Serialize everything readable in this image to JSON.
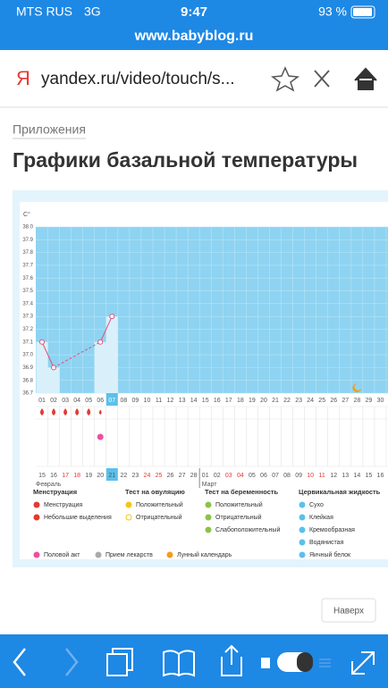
{
  "status": {
    "carrier": "MTS RUS",
    "network": "3G",
    "time": "9:47",
    "battery": "93 %"
  },
  "site": "www.babyblog.ru",
  "browser": {
    "logo": "Я",
    "url": "yandex.ru/video/touch/s..."
  },
  "breadcrumb": "Приложения",
  "title": "Графики базальной температуры",
  "chart": {
    "type": "line",
    "unit": "C°",
    "ylim": [
      36.7,
      38.0
    ],
    "yticks": [
      36.7,
      36.8,
      36.9,
      {
        "value": 37.0,
        "label": "37.0"
      },
      37.1,
      37.2,
      37.3,
      37.4,
      37.5,
      37.6,
      37.7,
      37.8,
      37.9,
      {
        "value": 38.0,
        "label": "38.0"
      }
    ],
    "days": [
      "01",
      "02",
      "03",
      "04",
      "05",
      "06",
      "07",
      "08",
      "09",
      "10",
      "11",
      "12",
      "13",
      "14",
      "15",
      "16",
      "17",
      "18",
      "19",
      "20",
      "21",
      "22",
      "23",
      "24",
      "25",
      "26",
      "27",
      "28",
      "29",
      "30",
      "31"
    ],
    "values": [
      37.1,
      36.9,
      null,
      null,
      null,
      37.1,
      37.3,
      null,
      null,
      null,
      null,
      null,
      null,
      null,
      null,
      null,
      null,
      null,
      null,
      null,
      null,
      null,
      null,
      null,
      null,
      null,
      null,
      null,
      null,
      null,
      null
    ],
    "today": 6,
    "dates": [
      "15",
      "16",
      "17",
      "18",
      "19",
      "20",
      "21",
      "22",
      "23",
      "24",
      "25",
      "26",
      "27",
      "28",
      "01",
      "02",
      "03",
      "04",
      "05",
      "06",
      "07",
      "08",
      "09",
      "10",
      "11",
      "12",
      "13",
      "14",
      "15",
      "16",
      "17"
    ],
    "weekend": [
      2,
      3,
      9,
      10,
      16,
      17,
      23,
      24,
      30
    ],
    "months": [
      "Февраль",
      "Март"
    ],
    "menstruation_days": [
      0,
      1,
      2,
      3,
      4
    ],
    "spotting_days": [
      5
    ],
    "intercourse_days": [
      5
    ],
    "moon_days": [
      27
    ]
  },
  "legend": [
    {
      "title": "Менструация",
      "items": [
        "Менструация",
        "Небольшие выделения"
      ]
    },
    {
      "title": "Тест на овуляцию",
      "items": [
        "Положительный",
        "Отрицательный"
      ]
    },
    {
      "title": "Тест на беременность",
      "items": [
        "Положительный",
        "Отрицательный",
        "Слабоположительный"
      ]
    },
    {
      "title": "Цервикальная жидкость",
      "items": [
        "Сухо",
        "Клейкая",
        "Кремообразная",
        "Водянистая",
        "Яичный белок"
      ]
    }
  ],
  "extra_legend": [
    "Половой акт",
    "Прием лекарств",
    "Лунный календарь"
  ],
  "top_button": "Наверх"
}
